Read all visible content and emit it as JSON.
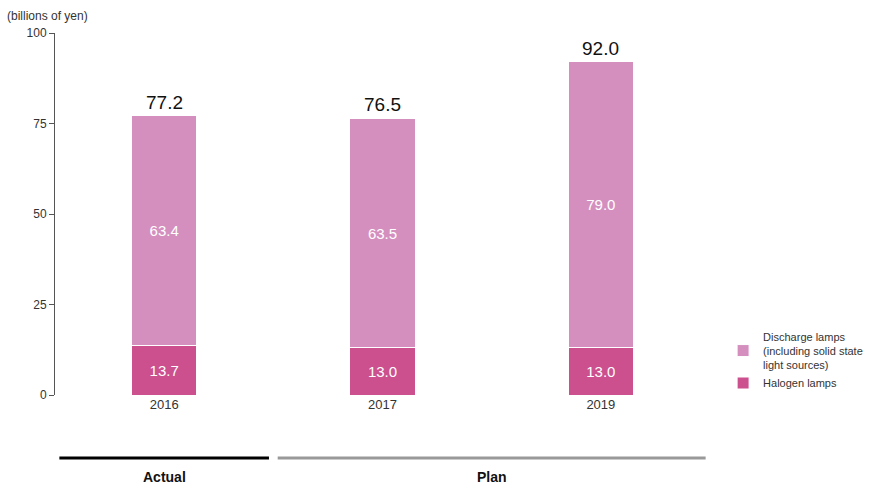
{
  "chart_data": {
    "type": "bar",
    "stacked": true,
    "data_labels": true,
    "y_label": "(billions of yen)",
    "categories": [
      "2016",
      "2017",
      "2019"
    ],
    "series": [
      {
        "name": "Halogen lamps",
        "color": "#cc4f8e",
        "values": [
          13.7,
          13.0,
          13.0
        ],
        "value_labels": [
          "13.7",
          "13.0",
          "13.0"
        ]
      },
      {
        "name": "Discharge lamps (including solid state light sources)",
        "color": "#d48fbf",
        "values": [
          63.4,
          63.5,
          79.0
        ],
        "value_labels": [
          "63.4",
          "63.5",
          "79.0"
        ]
      }
    ],
    "totals": {
      "values": [
        77.2,
        76.5,
        92.0
      ],
      "value_labels": [
        "77.2",
        "76.5",
        "92.0"
      ]
    },
    "groups": [
      {
        "label": "Actual",
        "categories": [
          "2016"
        ],
        "color": "#000000"
      },
      {
        "label": "Plan",
        "categories": [
          "2017",
          "2019"
        ],
        "color": "#999999"
      }
    ],
    "ylim": [
      0,
      100
    ],
    "yticks": [
      0,
      25,
      50,
      75,
      100
    ],
    "grid": false,
    "legend": "bottom right"
  }
}
